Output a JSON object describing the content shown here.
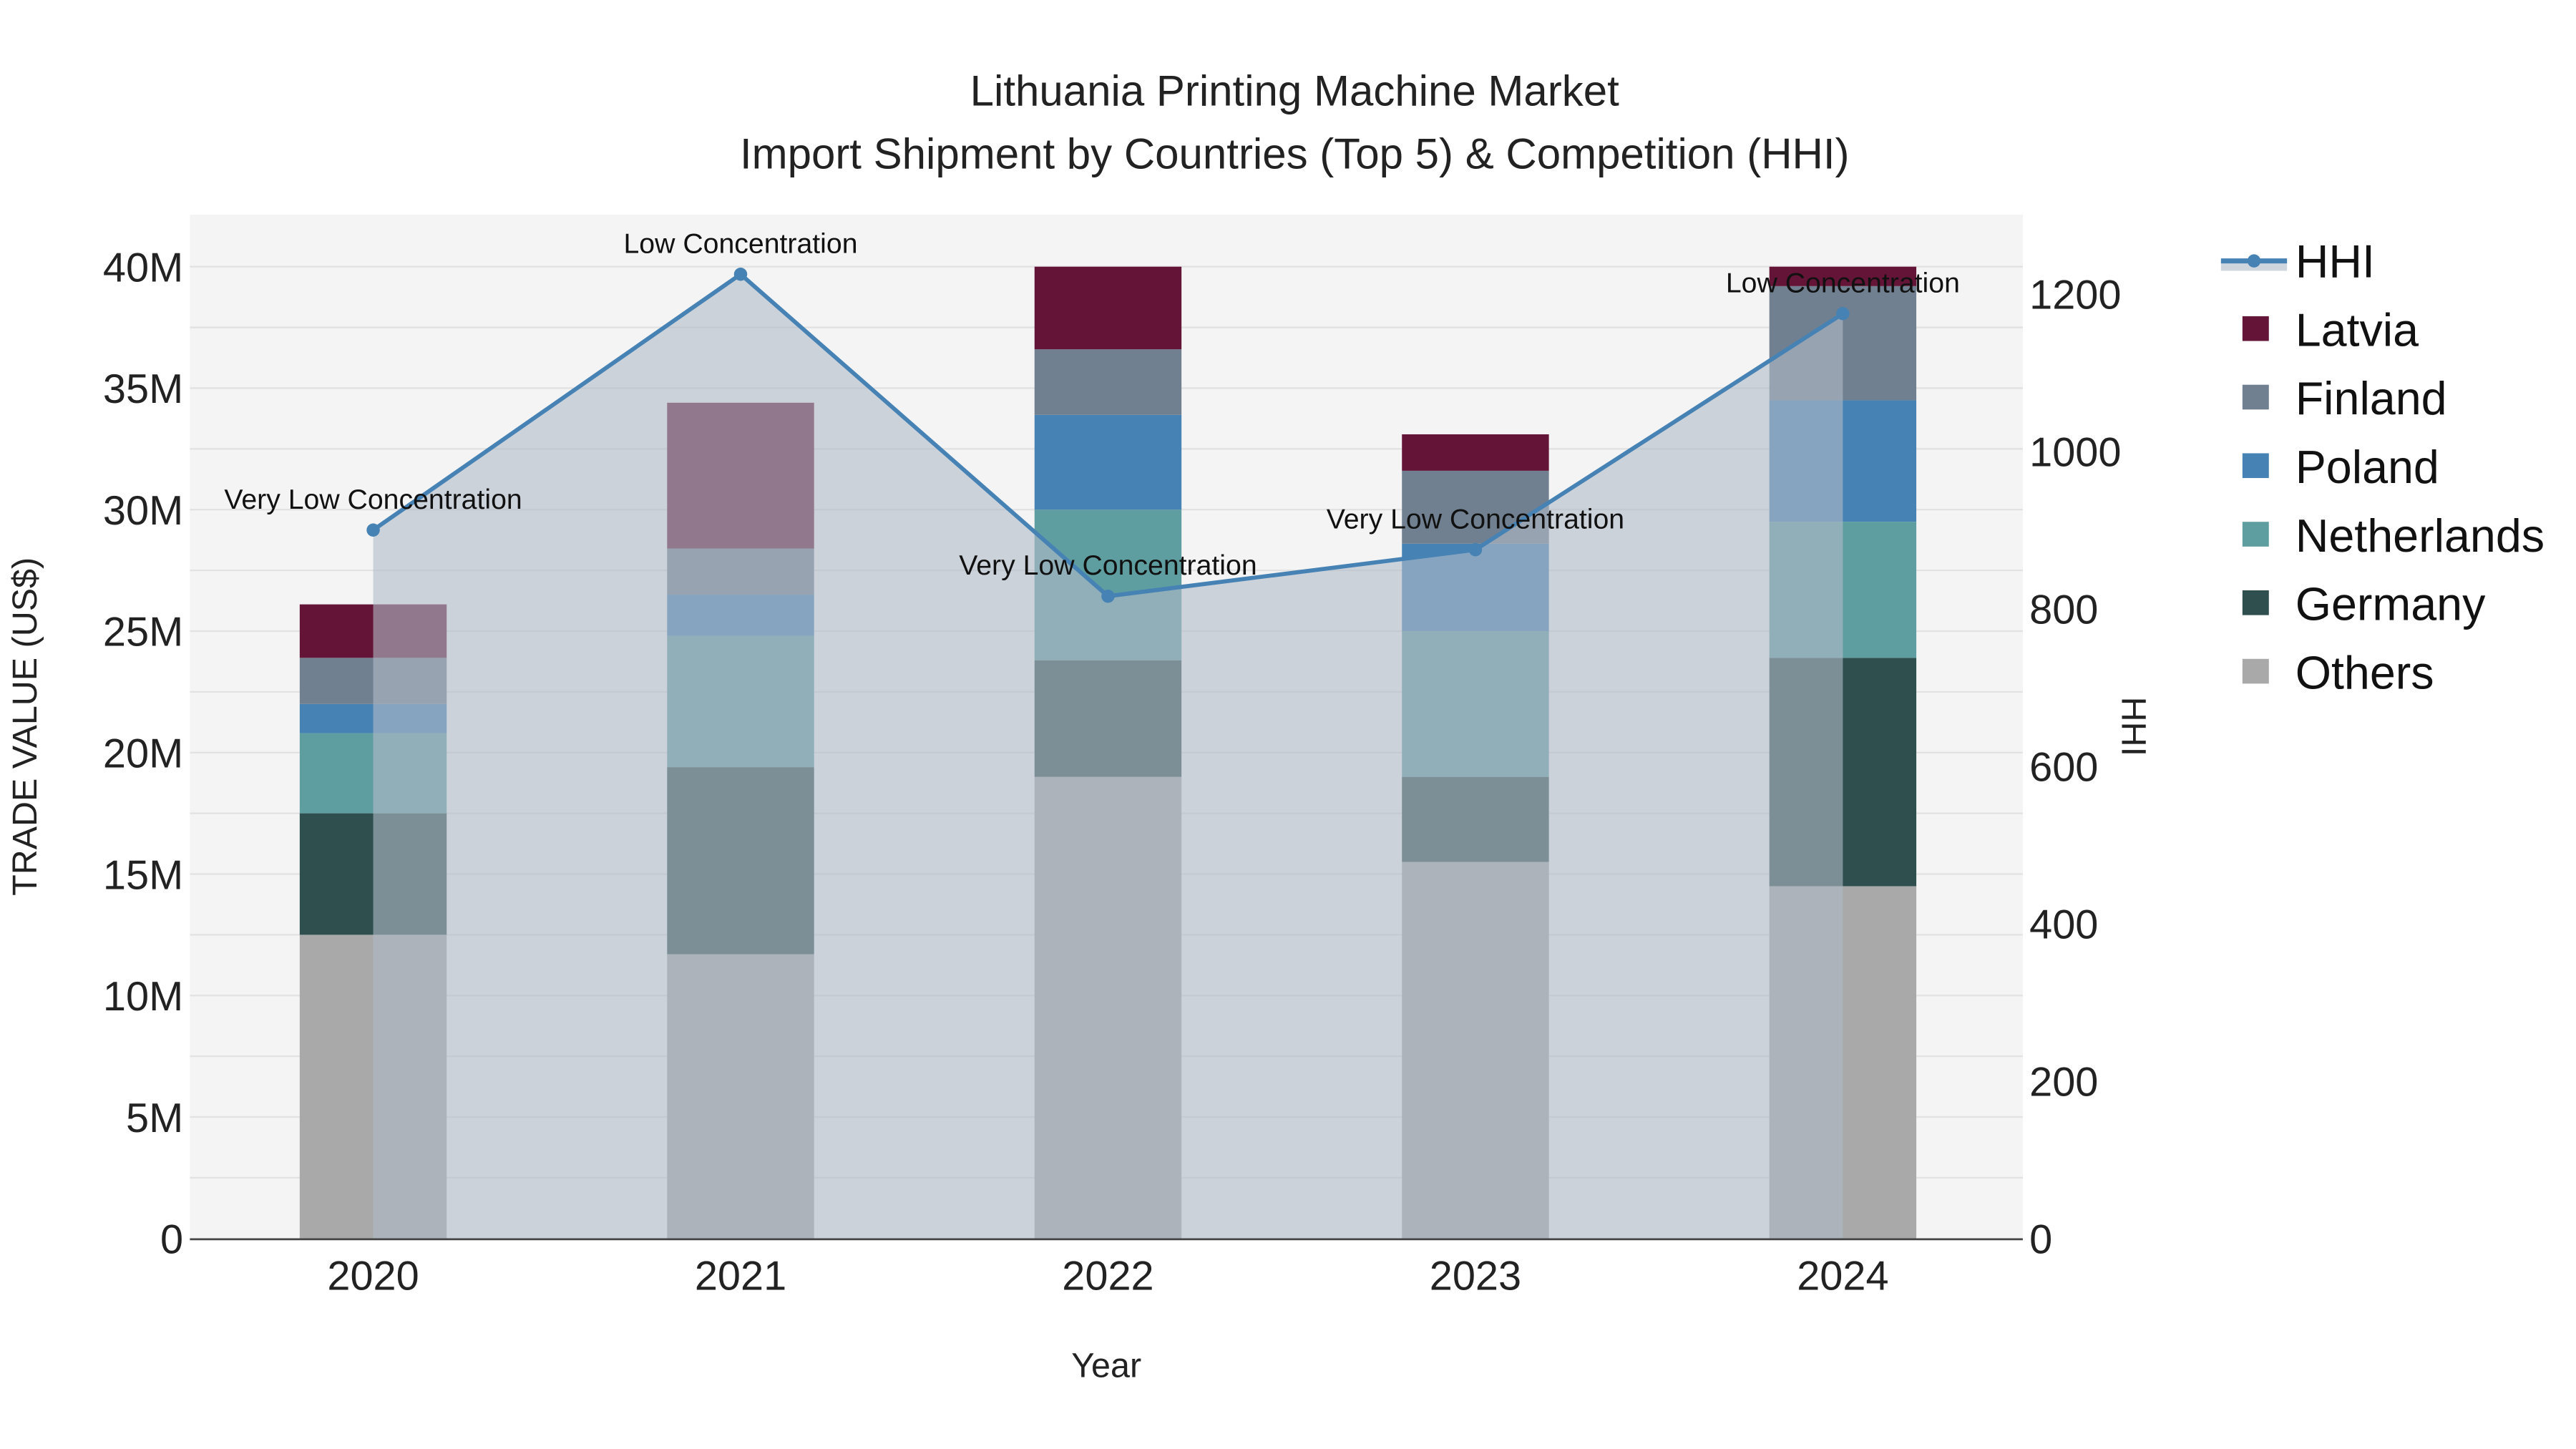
{
  "chart_data": {
    "type": "bar",
    "stacked": true,
    "title": "Lithuania Printing Machine Market",
    "subtitle": "Import Shipment by Countries (Top 5) & Competition (HHI)",
    "xlabel": "Year",
    "ylabel": "TRADE VALUE (US$)",
    "y2label": "HHI",
    "categories": [
      "2020",
      "2021",
      "2022",
      "2023",
      "2024"
    ],
    "ylim": [
      0,
      42000000
    ],
    "y2lim": [
      0,
      1300
    ],
    "yticks": [
      0,
      5000000,
      10000000,
      15000000,
      20000000,
      25000000,
      30000000,
      35000000,
      40000000
    ],
    "ytick_labels": [
      "0",
      "5M",
      "10M",
      "15M",
      "20M",
      "25M",
      "30M",
      "35M",
      "40M"
    ],
    "y2ticks": [
      0,
      200,
      400,
      600,
      800,
      1000,
      1200
    ],
    "y2tick_labels": [
      "0",
      "200",
      "400",
      "600",
      "800",
      "1000",
      "1200"
    ],
    "series": [
      {
        "name": "Others",
        "color": "#a9a9a9",
        "values": [
          12500000,
          11700000,
          19000000,
          15500000,
          14500000
        ]
      },
      {
        "name": "Germany",
        "color": "#2f4f4f",
        "values": [
          5000000,
          7700000,
          4800000,
          3500000,
          9400000
        ]
      },
      {
        "name": "Netherlands",
        "color": "#5f9ea0",
        "values": [
          3300000,
          5400000,
          6200000,
          6000000,
          5600000
        ]
      },
      {
        "name": "Poland",
        "color": "#4682b4",
        "values": [
          1200000,
          1700000,
          3900000,
          3600000,
          5000000
        ]
      },
      {
        "name": "Finland",
        "color": "#708090",
        "values": [
          1900000,
          1900000,
          2700000,
          3000000,
          4700000
        ]
      },
      {
        "name": "Latvia",
        "color": "#641436",
        "values": [
          2200000,
          6000000,
          3400000,
          1500000,
          800000
        ]
      }
    ],
    "line": {
      "name": "HHI",
      "color": "#4682b4",
      "values": [
        900,
        1225,
        816,
        875,
        1175
      ],
      "annotations": [
        "Very Low Concentration",
        "Low Concentration",
        "Very Low Concentration",
        "Very Low Concentration",
        "Low Concentration"
      ]
    },
    "legend": [
      "HHI",
      "Latvia",
      "Finland",
      "Poland",
      "Netherlands",
      "Germany",
      "Others"
    ],
    "legend_position": "right",
    "grid": true
  }
}
